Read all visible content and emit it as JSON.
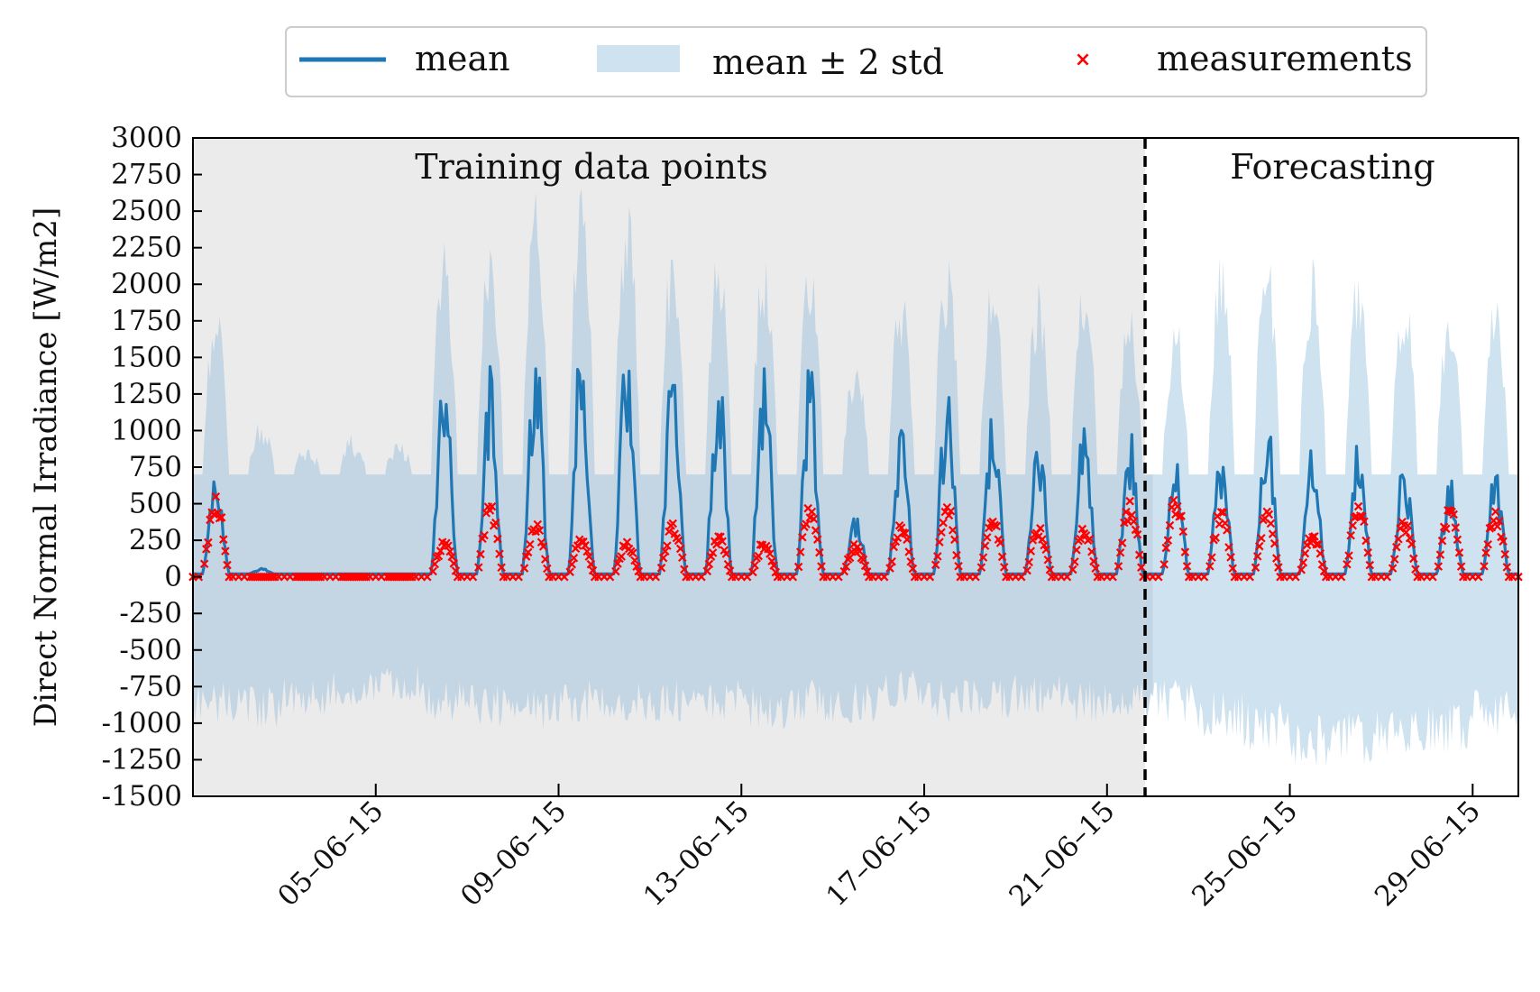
{
  "chart_data": {
    "type": "line",
    "title": "",
    "xlabel": "",
    "ylabel": "Direct Normal Irradiance [W/m2]",
    "ylim": [
      -1500,
      3000
    ],
    "xlim": [
      "2015-06-01",
      "2015-06-30"
    ],
    "yticks": [
      3000,
      2750,
      2500,
      2250,
      2000,
      1750,
      1500,
      1250,
      1000,
      750,
      500,
      250,
      0,
      -250,
      -500,
      -750,
      -1000,
      -1250,
      -1500
    ],
    "ytick_labels": [
      "3000",
      "2750",
      "2500",
      "2250",
      "2000",
      "1750",
      "1500",
      "1250",
      "1000",
      "750",
      "500",
      "250",
      "0",
      "-250",
      "-500",
      "-750",
      "-1000",
      "-1250",
      "-1500"
    ],
    "xticks": [
      "2015-06-05",
      "2015-06-09",
      "2015-06-13",
      "2015-06-17",
      "2015-06-21",
      "2015-06-25",
      "2015-06-29"
    ],
    "xtick_labels": [
      "05–06–15",
      "09–06–15",
      "13–06–15",
      "17–06–15",
      "21–06–15",
      "25–06–15",
      "29–06–15"
    ],
    "split_date": "2015-06-22",
    "regions": [
      {
        "label": "Training data points",
        "range": [
          "2015-06-01",
          "2015-06-22"
        ],
        "color": "#ebebeb"
      },
      {
        "label": "Forecasting",
        "range": [
          "2015-06-22",
          "2015-06-30"
        ],
        "color": "#ffffff"
      }
    ],
    "legend": {
      "position": "top-center",
      "entries": [
        {
          "label": "mean",
          "kind": "line",
          "color": "#1f77b4"
        },
        {
          "label": "mean ± 2 std",
          "kind": "band",
          "color": "#cfe2ef"
        },
        {
          "label": "measurements",
          "kind": "marker",
          "color": "#ff0000"
        }
      ]
    },
    "series": [
      {
        "name": "mean",
        "color": "#1f77b4",
        "daily_peak": [
          780,
          40,
          0,
          0,
          0,
          1560,
          1420,
          1640,
          1700,
          1670,
          1660,
          1470,
          1500,
          1480,
          420,
          1010,
          1320,
          1150,
          1050,
          1140,
          1000,
          780,
          920,
          1130,
          900,
          1000,
          800,
          700,
          730,
          920
        ]
      },
      {
        "name": "mean ± 2 std",
        "color": "#cfe2ef",
        "daily_upper": [
          1900,
          1100,
          900,
          980,
          950,
          2300,
          2450,
          2650,
          2700,
          2650,
          2350,
          2300,
          2320,
          2320,
          1500,
          2000,
          2200,
          2100,
          2050,
          2100,
          1900,
          1800,
          2250,
          2300,
          2200,
          2150,
          2050,
          1900,
          1950,
          2350
        ],
        "daily_lower": [
          -1000,
          -1050,
          -950,
          -900,
          -850,
          -1000,
          -1050,
          -1050,
          -1000,
          -1000,
          -1000,
          -1000,
          -1050,
          -1000,
          -1000,
          -900,
          -1000,
          -1000,
          -950,
          -1000,
          -1000,
          -1000,
          -1100,
          -1200,
          -1300,
          -1300,
          -1250,
          -1200,
          -1100,
          -1050
        ]
      },
      {
        "name": "measurements",
        "color": "#ff0000",
        "daily_peak": [
          550,
          0,
          0,
          0,
          0,
          250,
          500,
          380,
          270,
          250,
          380,
          290,
          250,
          500,
          230,
          370,
          510,
          410,
          350,
          360,
          520,
          570,
          470,
          460,
          300,
          520,
          400,
          490,
          470,
          150
        ]
      }
    ]
  }
}
